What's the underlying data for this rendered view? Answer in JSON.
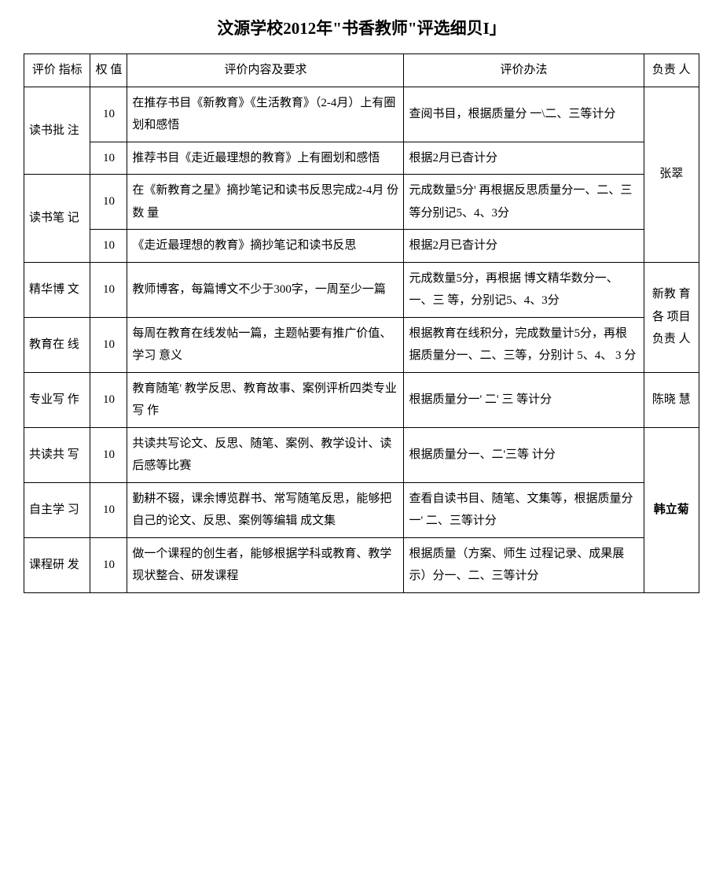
{
  "title": "汶源学校2012年\"书香教师\"评选细贝I」",
  "header": {
    "indicator": "评价 指标",
    "weight": "权 值",
    "content": "评价内容及要求",
    "method": "评价办法",
    "person": "负责 人"
  },
  "sections": [
    {
      "indicator": "读书批 注",
      "rows": [
        {
          "weight": "10",
          "content": "在推存书目《新教育》《生活教育》（2-4月）上有圈划和感悟",
          "method": "查阅书目，根据质量分 一\\二、三等计分"
        },
        {
          "weight": "10",
          "content": "推荐书目《走近最理想的教育》上有圈划和感悟",
          "method": "根据2月已杳计分"
        }
      ],
      "person": "张翠"
    },
    {
      "indicator": "读书笔 记",
      "rows": [
        {
          "weight": "10",
          "content": "在《新教育之星》摘抄笔记和读书反思完成2-4月 份数 量",
          "method": "元成数量5分' 再根据反思质量分一、二、三 等分别记5、4、3分"
        },
        {
          "weight": "10",
          "content": "《走近最理想的教育》摘抄笔记和读书反思",
          "method": "根据2月已杳计分"
        }
      ]
    },
    {
      "indicator": "精华博 文",
      "rows": [
        {
          "weight": "10",
          "content": "教师博客，每篇博文不少于300字，一周至少一篇",
          "method": "元成数量5分，再根据 博文精华数分一、一、三 等，分别记5、4、3分"
        }
      ],
      "person": "新教 育各 项目 负责 人"
    },
    {
      "indicator": "教育在 线",
      "rows": [
        {
          "weight": "10",
          "content": "每周在教育在线发帖一篇，主题帖要有推广价值、学习 意义",
          "method": "根据教育在线积分，完成数量计5分，再根据质量分一、二、三等，分别计 5、4、 3 分"
        }
      ]
    },
    {
      "indicator": "专业写 作",
      "rows": [
        {
          "weight": "10",
          "content": "教育随笔' 教学反思、教育故事、案例评析四类专业写 作",
          "method": "根据质量分一' 二' 三 等计分"
        }
      ],
      "person": "陈晓 慧"
    },
    {
      "indicator": "共读共 写",
      "rows": [
        {
          "weight": "10",
          "content": "共读共写论文、反思、随笔、案例、教学设计、读后感等比赛",
          "method": "根据质量分一、二'三等 计分"
        }
      ],
      "person": "韩立菊",
      "person_bold": true
    },
    {
      "indicator": "自主学 习",
      "rows": [
        {
          "weight": "10",
          "content": "勤耕不辍，课余博览群书、常写随笔反思，能够把自己的论文、反思、案例等编辑 成文集",
          "method": "查看自读书目、随笔、文集等，根据质量分一' 二、三等计分"
        }
      ]
    },
    {
      "indicator": "课程研 发",
      "rows": [
        {
          "weight": "10",
          "content": "做一个课程的创生者，能够根据学科或教育、教学现状整合、研发课程",
          "method": "根据质量（方案、师生 过程记录、成果展示）分一、二、三等计分"
        }
      ]
    }
  ]
}
